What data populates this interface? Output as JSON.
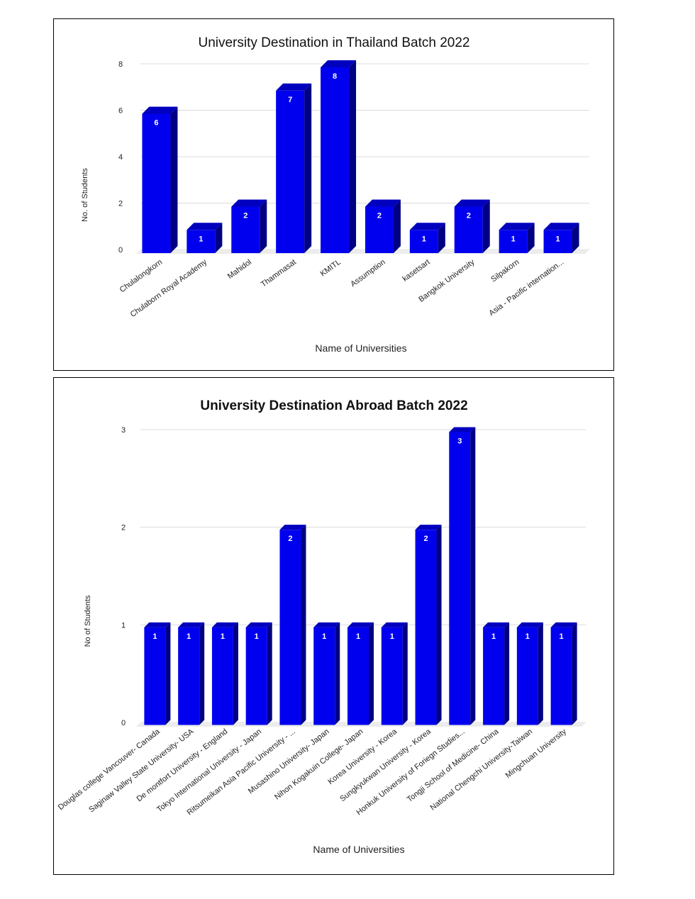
{
  "chart_data": [
    {
      "type": "bar",
      "title": "University Destination in Thailand Batch 2022",
      "xlabel": "Name of Universities",
      "ylabel": "No. of Students",
      "ylim": [
        0,
        8
      ],
      "yticks": [
        0,
        2,
        4,
        6,
        8
      ],
      "categories": [
        "Chulalongkorn",
        "Chulaborn Royal Academy",
        "Mahidol",
        "Thammasat",
        "KMITL",
        "Assumption",
        "kasetsart",
        "Bangkok University",
        "Silpakorn",
        "Asia - Pacific internation..."
      ],
      "values": [
        6,
        1,
        2,
        7,
        8,
        2,
        1,
        2,
        1,
        1
      ],
      "bar_color": "#0000ee",
      "grid": true
    },
    {
      "type": "bar",
      "title": "University Destination Abroad Batch 2022",
      "xlabel": "Name of Universities",
      "ylabel": "No of Students",
      "ylim": [
        0,
        3
      ],
      "yticks": [
        0,
        1,
        2,
        3
      ],
      "categories": [
        "Douglas college Vancouver- Canada",
        "Saginaw Valley State University- USA",
        "De montfort University - England",
        "Tokyo International University - Japan",
        "Ritsumeikan Asia Pacific University - ...",
        "Musashino University- Japan",
        "Nihon Kogakuin College- Japan",
        "Korea University - Korea",
        "Sungkyukwan University - Korea",
        "Honkuk University of Foriegn Studies...",
        "Tongji School of Medicine- China",
        "National Chengchi University-Taiwan",
        "Mingchuan University"
      ],
      "values": [
        1,
        1,
        1,
        1,
        2,
        1,
        1,
        1,
        2,
        3,
        1,
        1,
        1
      ],
      "bar_color": "#0000ee",
      "grid": true
    }
  ]
}
